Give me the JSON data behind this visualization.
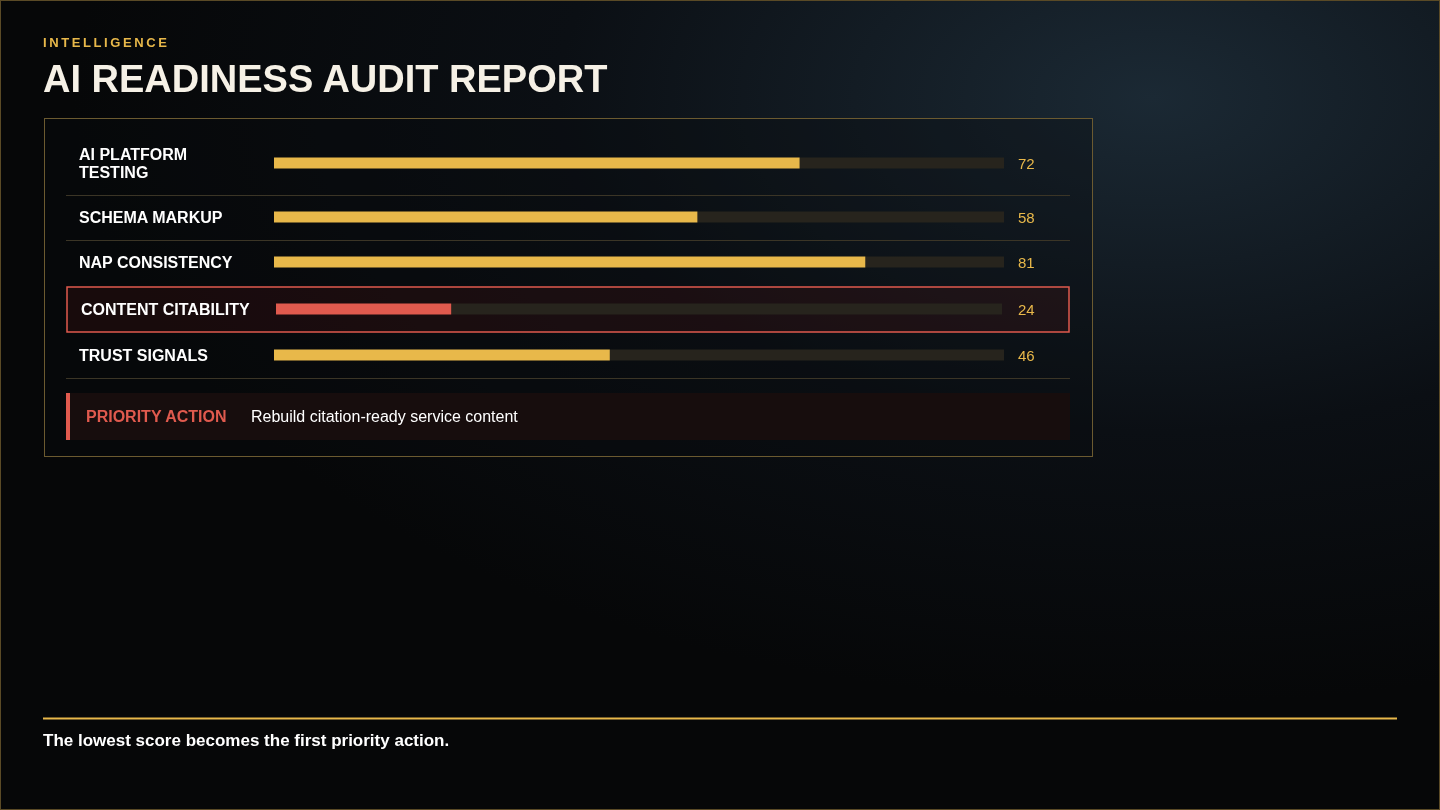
{
  "chart_data": {
    "type": "bar",
    "orientation": "horizontal",
    "title": "AI READINESS AUDIT REPORT",
    "subtitle": "INTELLIGENCE",
    "categories": [
      "AI PLATFORM TESTING",
      "SCHEMA MARKUP",
      "NAP CONSISTENCY",
      "CONTENT CITABILITY",
      "TRUST SIGNALS"
    ],
    "values": [
      72,
      58,
      81,
      24,
      46
    ],
    "color": "#e8b84a",
    "colors": [
      "#e8b84a",
      "#e8b84a",
      "#e8b84a",
      "#e05a4e",
      "#e8b84a"
    ],
    "xlim": [
      0,
      100
    ],
    "tick_labels": "y",
    "data_labels": true,
    "annotations": [
      "PRIORITY ACTION",
      "Rebuild citation-ready service content",
      "The lowest score becomes the first priority action."
    ]
  }
}
